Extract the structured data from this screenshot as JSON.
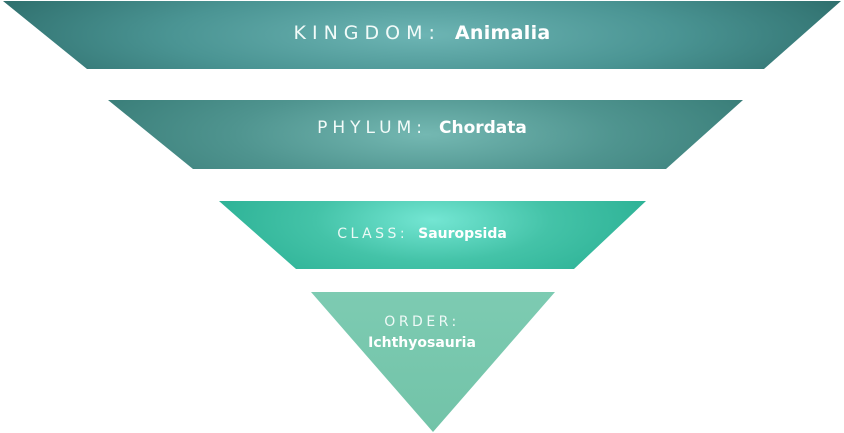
{
  "levels": [
    {
      "rank": "KINGDOM:",
      "taxon": "Animalia"
    },
    {
      "rank": "PHYLUM:",
      "taxon": "Chordata"
    },
    {
      "rank": "CLASS:",
      "taxon": "Sauropsida"
    },
    {
      "rank": "ORDER:",
      "taxon": "Ichthyosauria"
    }
  ],
  "colors": {
    "kingdom_edge": "#2f6f6d",
    "kingdom_center": "#55a3a2",
    "phylum_edge": "#3a7e79",
    "phylum_center": "#62aba6",
    "class_edge": "#2bb094",
    "class_center": "#6fe0cc",
    "order_fill": "#79c8ae"
  }
}
